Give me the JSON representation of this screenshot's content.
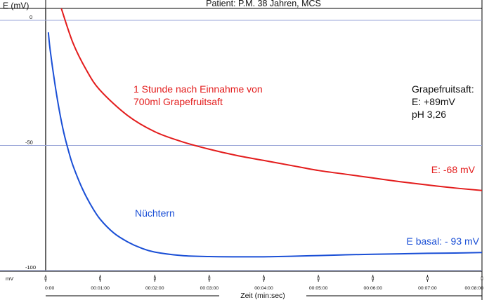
{
  "chart_data": {
    "type": "line",
    "title": "Patient: P.M. 38 Jahren, MCS",
    "ylabel": "E (mV)",
    "yunit": "mV",
    "xlabel": "Zeit (min:sec)",
    "ylim": [
      -100,
      0
    ],
    "xlim": [
      0,
      480
    ],
    "y_ticks": [
      {
        "value": 0,
        "label": "0"
      },
      {
        "value": -50,
        "label": "-50"
      },
      {
        "value": -100,
        "label": "-100"
      }
    ],
    "x_ticks": [
      {
        "value": 0,
        "label": "0:00"
      },
      {
        "value": 60,
        "label": "00:01:00"
      },
      {
        "value": 120,
        "label": "00:02:00"
      },
      {
        "value": 180,
        "label": "00:03:00"
      },
      {
        "value": 240,
        "label": "00:04:00"
      },
      {
        "value": 300,
        "label": "00:05:00"
      },
      {
        "value": 360,
        "label": "00:06:00"
      },
      {
        "value": 420,
        "label": "00:07:00"
      },
      {
        "value": 480,
        "label": "00:08:00"
      }
    ],
    "grid": {
      "horizontal_lines_at": [
        0,
        -50,
        -100
      ]
    },
    "series": [
      {
        "name": "1 Stunde nach Einnahme von 700ml Grapefruitsaft",
        "color": "#e31c1c",
        "x": [
          17,
          30,
          45,
          60,
          90,
          120,
          150,
          180,
          210,
          240,
          270,
          300,
          330,
          360,
          390,
          420,
          450,
          480
        ],
        "y": [
          5,
          -9,
          -20,
          -28,
          -38,
          -44.5,
          -48.5,
          -51.5,
          -54,
          -56,
          -58,
          -60,
          -61.5,
          -63,
          -64.5,
          -65.8,
          -67,
          -68
        ]
      },
      {
        "name": "Nüchtern",
        "color": "#1a4fd6",
        "x": [
          3,
          5,
          10,
          15,
          20,
          25,
          30,
          40,
          50,
          60,
          75,
          90,
          105,
          120,
          150,
          180,
          210,
          240,
          270,
          300,
          330,
          360,
          390,
          420,
          450,
          480
        ],
        "y": [
          -5,
          -12,
          -25,
          -36,
          -45,
          -52,
          -58,
          -67,
          -74,
          -79.5,
          -85,
          -88.5,
          -91,
          -92.6,
          -94,
          -94.4,
          -94.5,
          -94.5,
          -94.3,
          -94,
          -93.7,
          -93.5,
          -93.3,
          -93.1,
          -93,
          -92.8
        ]
      }
    ],
    "annotations": [
      {
        "text": "1 Stunde nach Einnahme von",
        "color": "#e31c1c"
      },
      {
        "text": "700ml Grapefruitsaft",
        "color": "#e31c1c"
      },
      {
        "text": "Nüchtern",
        "color": "#1a4fd6"
      },
      {
        "text": "E: -68 mV",
        "color": "#e31c1c"
      },
      {
        "text": "E basal: - 93 mV",
        "color": "#1a4fd6"
      },
      {
        "text": "Grapefruitsaft:",
        "color": "#111111"
      },
      {
        "text": "E: +89mV",
        "color": "#111111"
      },
      {
        "text": "pH 3,26",
        "color": "#111111"
      }
    ]
  }
}
